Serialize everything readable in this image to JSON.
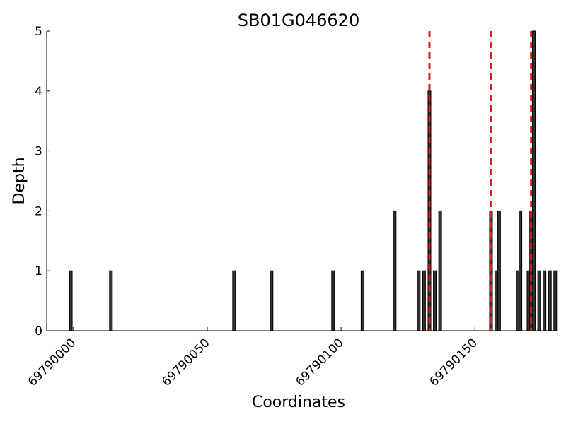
{
  "chart_data": {
    "type": "bar",
    "title": "SB01G046620",
    "xlabel": "Coordinates",
    "ylabel": "Depth",
    "xlim": [
      69789990,
      69790179
    ],
    "ylim": [
      0,
      5
    ],
    "x_ticks": [
      69790000,
      69790050,
      69790100,
      69790150
    ],
    "y_ticks": [
      0,
      1,
      2,
      3,
      4,
      5
    ],
    "bars": [
      {
        "x": 69789999,
        "y": 1
      },
      {
        "x": 69790014,
        "y": 1
      },
      {
        "x": 69790060,
        "y": 1
      },
      {
        "x": 69790074,
        "y": 1
      },
      {
        "x": 69790097,
        "y": 1
      },
      {
        "x": 69790108,
        "y": 1
      },
      {
        "x": 69790120,
        "y": 2
      },
      {
        "x": 69790129,
        "y": 1
      },
      {
        "x": 69790131,
        "y": 1
      },
      {
        "x": 69790133,
        "y": 4
      },
      {
        "x": 69790135,
        "y": 1
      },
      {
        "x": 69790137,
        "y": 2
      },
      {
        "x": 69790156,
        "y": 2
      },
      {
        "x": 69790158,
        "y": 1
      },
      {
        "x": 69790159,
        "y": 2
      },
      {
        "x": 69790166,
        "y": 1
      },
      {
        "x": 69790167,
        "y": 2
      },
      {
        "x": 69790170,
        "y": 1
      },
      {
        "x": 69790171,
        "y": 2
      },
      {
        "x": 69790172,
        "y": 5
      },
      {
        "x": 69790174,
        "y": 1
      },
      {
        "x": 69790176,
        "y": 1
      },
      {
        "x": 69790178,
        "y": 1
      },
      {
        "x": 69790180,
        "y": 1
      }
    ],
    "reference_lines_x": [
      69790133,
      69790156,
      69790171
    ],
    "reference_line_color": "#e41a1c",
    "bar_color": "#333333",
    "grid": false
  }
}
